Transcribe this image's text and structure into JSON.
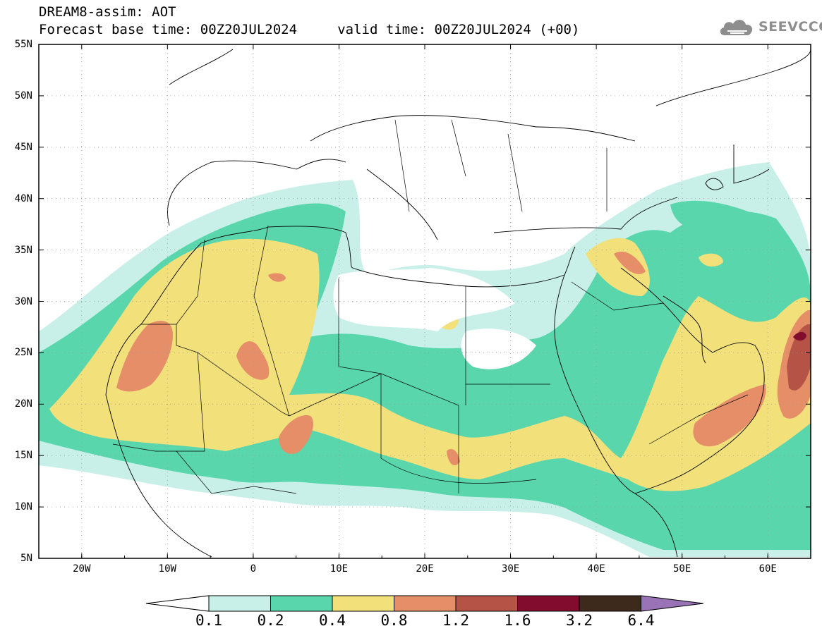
{
  "header": {
    "line1": "DREAM8-assim: AOT",
    "line2": "Forecast base time: 00Z20JUL2024     valid time: 00Z20JUL2024 (+00)"
  },
  "logo": {
    "text": "SEEVCCC",
    "icon": "cloud-logo-icon"
  },
  "map": {
    "lat_range": [
      5,
      55
    ],
    "lon_range": [
      -25,
      65
    ],
    "grid": true,
    "y_ticks": [
      "55N",
      "50N",
      "45N",
      "40N",
      "35N",
      "30N",
      "25N",
      "20N",
      "15N",
      "10N",
      "5N"
    ],
    "x_ticks": [
      "20W",
      "10W",
      "0",
      "10E",
      "20E",
      "30E",
      "40E",
      "50E",
      "60E"
    ]
  },
  "colorbar": {
    "levels": [
      "0.1",
      "0.2",
      "0.4",
      "0.8",
      "1.2",
      "1.6",
      "3.2",
      "6.4"
    ],
    "colors": [
      "#c8f0e8",
      "#5ad6ad",
      "#f2e07a",
      "#e58e68",
      "#b55446",
      "#820c2e",
      "#3e2a1c",
      "#9a72b6"
    ]
  }
}
